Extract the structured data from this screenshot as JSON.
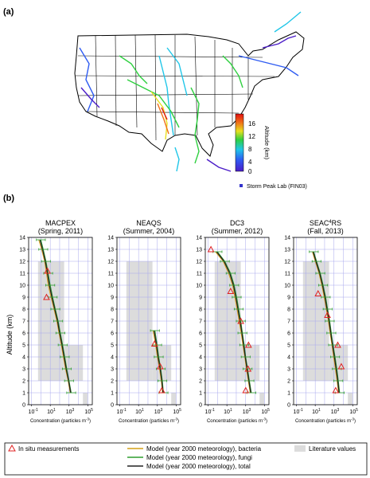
{
  "panel_a": {
    "label": "(a)",
    "colorbar": {
      "ticks": [
        "16",
        "12",
        "8",
        "4",
        "0"
      ],
      "label": "Altitude (km)"
    },
    "legend_site": "Storm Peak Lab (FIN03)"
  },
  "panel_b": {
    "label": "(b)",
    "y_axis_label": "Altitude (km)",
    "x_axis_label": "Concentration (particles m",
    "x_axis_sup": "-3",
    "x_axis_close": ")",
    "x_ticks": [
      "10",
      "10",
      "10",
      "10"
    ],
    "x_tick_sups": [
      "-1",
      "1",
      "3",
      "5"
    ],
    "y_ticks": [
      "0",
      "1",
      "2",
      "3",
      "4",
      "5",
      "6",
      "7",
      "8",
      "9",
      "10",
      "11",
      "12",
      "13",
      "14"
    ]
  },
  "legend": {
    "insitu": "In situ measurements",
    "bacteria": "Model (year 2000 meteorology), bacteria",
    "fungi": "Model (year 2000 meteorology), fungi",
    "total": "Model (year 2000 meteorology), total",
    "literature": "Literature values"
  },
  "colors": {
    "bacteria": "#d4a017",
    "fungi": "#2e9e2e",
    "total": "#222222",
    "insitu": "#e02020",
    "literature": "#dcdcdc",
    "grid": "#a8a8ee"
  },
  "chart_data": [
    {
      "type": "line",
      "title": "MACPEX",
      "subtitle": "(Spring, 2011)",
      "xscale": "log",
      "xlim": [
        0.05,
        300000
      ],
      "ylim": [
        0,
        14
      ],
      "literature": [
        {
          "x": [
            0.5,
            300
          ],
          "y": [
            2,
            12
          ]
        },
        {
          "x": [
            300,
            30000
          ],
          "y": [
            2,
            5
          ]
        },
        {
          "x": [
            30000,
            100000
          ],
          "y": [
            0,
            1
          ]
        }
      ],
      "series": [
        {
          "name": "total",
          "y": [
            1,
            2,
            3,
            4,
            5,
            6,
            7,
            8,
            9,
            10,
            11,
            12,
            13,
            13.8
          ],
          "x": [
            1500,
            900,
            500,
            300,
            180,
            100,
            60,
            30,
            15,
            8,
            5,
            3,
            1.5,
            0.8
          ]
        },
        {
          "name": "bacteria",
          "y": [
            1,
            2,
            3,
            4,
            5,
            6,
            7,
            8,
            9,
            10,
            11,
            12,
            13,
            13.8
          ],
          "x": [
            1300,
            800,
            420,
            250,
            150,
            85,
            50,
            25,
            12,
            6,
            4,
            2.5,
            1.2,
            0.6
          ]
        },
        {
          "name": "fungi",
          "y": [
            1,
            2,
            3,
            4,
            5,
            6,
            7,
            8,
            9,
            10,
            11,
            12,
            13,
            13.8
          ],
          "x": [
            1700,
            1000,
            580,
            350,
            210,
            120,
            70,
            35,
            18,
            10,
            6,
            3.5,
            1.8,
            1
          ]
        }
      ],
      "insitu": [
        {
          "x": 5,
          "y": 11.2
        },
        {
          "x": 4,
          "y": 9
        }
      ]
    },
    {
      "type": "line",
      "title": "NEAQS",
      "subtitle": "(Summer, 2004)",
      "xscale": "log",
      "xlim": [
        0.05,
        300000
      ],
      "ylim": [
        0,
        14
      ],
      "literature": [
        {
          "x": [
            0.5,
            300
          ],
          "y": [
            2,
            12
          ]
        },
        {
          "x": [
            300,
            30000
          ],
          "y": [
            2,
            5
          ]
        },
        {
          "x": [
            30000,
            100000
          ],
          "y": [
            0,
            1
          ]
        }
      ],
      "series": [
        {
          "name": "total",
          "y": [
            1,
            2,
            3,
            4,
            5,
            6.2
          ],
          "x": [
            4000,
            3000,
            2000,
            1200,
            800,
            450
          ]
        },
        {
          "name": "bacteria",
          "y": [
            1,
            2,
            3,
            4,
            5,
            6.2
          ],
          "x": [
            3500,
            2600,
            1700,
            1000,
            650,
            350
          ]
        },
        {
          "name": "fungi",
          "y": [
            1,
            2,
            3,
            4,
            5,
            6.2
          ],
          "x": [
            4500,
            3400,
            2300,
            1400,
            950,
            550
          ]
        }
      ],
      "insitu": [
        {
          "x": 500,
          "y": 5.1
        },
        {
          "x": 2000,
          "y": 3.2
        },
        {
          "x": 3000,
          "y": 1.2
        }
      ]
    },
    {
      "type": "line",
      "title": "DC3",
      "subtitle": "(Summer, 2012)",
      "xscale": "log",
      "xlim": [
        0.05,
        300000
      ],
      "ylim": [
        0,
        14
      ],
      "literature": [
        {
          "x": [
            0.5,
            300
          ],
          "y": [
            2,
            12
          ]
        },
        {
          "x": [
            300,
            30000
          ],
          "y": [
            2,
            5
          ]
        },
        {
          "x": [
            30000,
            100000
          ],
          "y": [
            0,
            1
          ]
        }
      ],
      "series": [
        {
          "name": "total",
          "y": [
            1,
            2,
            3,
            4,
            5,
            6,
            7,
            8,
            9,
            10,
            11,
            12,
            12.8
          ],
          "x": [
            3500,
            2200,
            1400,
            900,
            600,
            400,
            250,
            150,
            90,
            50,
            20,
            5,
            0.8
          ]
        },
        {
          "name": "bacteria",
          "y": [
            1,
            2,
            3,
            4,
            5,
            6,
            7,
            8,
            9,
            10,
            11,
            12,
            12.8
          ],
          "x": [
            3000,
            1900,
            1200,
            800,
            500,
            330,
            200,
            120,
            70,
            40,
            15,
            4,
            0.6
          ]
        },
        {
          "name": "fungi",
          "y": [
            1,
            2,
            3,
            4,
            5,
            6,
            7,
            8,
            9,
            10,
            11,
            12,
            12.8
          ],
          "x": [
            4000,
            2500,
            1600,
            1000,
            700,
            450,
            300,
            180,
            110,
            60,
            25,
            6,
            1
          ]
        }
      ],
      "insitu": [
        {
          "x": 0.2,
          "y": 13
        },
        {
          "x": 25,
          "y": 9.5
        },
        {
          "x": 300,
          "y": 7
        },
        {
          "x": 2000,
          "y": 5
        },
        {
          "x": 1800,
          "y": 3
        },
        {
          "x": 1000,
          "y": 1.2
        }
      ]
    },
    {
      "type": "line",
      "title": "SEAC",
      "title_sup": "4",
      "title_end": "RS",
      "subtitle": "(Fall, 2013)",
      "xscale": "log",
      "xlim": [
        0.05,
        300000
      ],
      "ylim": [
        0,
        14
      ],
      "literature": [
        {
          "x": [
            0.5,
            300
          ],
          "y": [
            2,
            12
          ]
        },
        {
          "x": [
            300,
            30000
          ],
          "y": [
            2,
            5
          ]
        },
        {
          "x": [
            30000,
            100000
          ],
          "y": [
            0,
            1
          ]
        }
      ],
      "series": [
        {
          "name": "total",
          "y": [
            1,
            2,
            3,
            4,
            5,
            6,
            7,
            8,
            9,
            10,
            11,
            12,
            12.8
          ],
          "x": [
            3500,
            2500,
            1700,
            1100,
            700,
            450,
            300,
            180,
            110,
            60,
            30,
            12,
            6
          ]
        },
        {
          "name": "bacteria",
          "y": [
            1,
            2,
            3,
            4,
            5,
            6,
            7,
            8,
            9,
            10,
            11,
            12,
            12.8
          ],
          "x": [
            3000,
            2100,
            1400,
            900,
            600,
            380,
            250,
            150,
            90,
            50,
            25,
            10,
            5
          ]
        },
        {
          "name": "fungi",
          "y": [
            1,
            2,
            3,
            4,
            5,
            6,
            7,
            8,
            9,
            10,
            11,
            12,
            12.8
          ],
          "x": [
            4000,
            2900,
            2000,
            1300,
            800,
            520,
            350,
            210,
            130,
            70,
            35,
            14,
            7
          ]
        }
      ],
      "insitu": [
        {
          "x": 20,
          "y": 9.3
        },
        {
          "x": 200,
          "y": 7.5
        },
        {
          "x": 2500,
          "y": 5
        },
        {
          "x": 6000,
          "y": 3.2
        },
        {
          "x": 1500,
          "y": 1.2
        }
      ]
    }
  ]
}
